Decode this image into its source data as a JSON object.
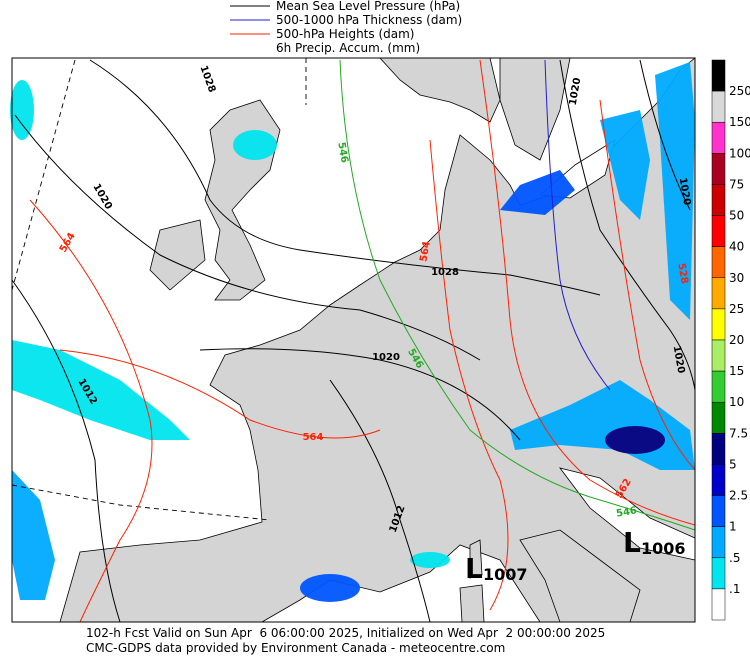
{
  "legend": [
    {
      "label": "Mean Sea Level Pressure (hPa)",
      "color": "#000000"
    },
    {
      "label": "500-1000 hPa Thickness (dam)",
      "color": "#2020cc"
    },
    {
      "label": "500-hPa Heights (dam)",
      "color": "#ff2200"
    },
    {
      "label": "6h Precip. Accum. (mm)",
      "color": null
    }
  ],
  "colorbar": {
    "labels": [
      "250",
      "150",
      "100",
      "75",
      "50",
      "40",
      "30",
      "25",
      "20",
      "15",
      "10",
      "7.5",
      "5",
      "2.5",
      "1",
      ".5",
      ".1"
    ],
    "colors": [
      "#000000",
      "#d8d8d8",
      "#ff33cc",
      "#aa0022",
      "#cc0000",
      "#ff0000",
      "#ff6600",
      "#ffaa00",
      "#ffff00",
      "#aaee66",
      "#33cc33",
      "#008800",
      "#000080",
      "#0000cc",
      "#0055ff",
      "#00aaff",
      "#00e5ee",
      "#ffffff"
    ]
  },
  "contour_labels": [
    {
      "text": "1028",
      "color": "#000000"
    },
    {
      "text": "1020",
      "color": "#000000"
    },
    {
      "text": "564",
      "color": "#ff2200"
    },
    {
      "text": "546",
      "color": "#22aa22"
    },
    {
      "text": "564",
      "color": "#ff2200"
    },
    {
      "text": "1028",
      "color": "#000000"
    },
    {
      "text": "1020",
      "color": "#000000"
    },
    {
      "text": "546",
      "color": "#22aa22"
    },
    {
      "text": "1012",
      "color": "#000000"
    },
    {
      "text": "564",
      "color": "#ff2200"
    },
    {
      "text": "1012",
      "color": "#000000"
    },
    {
      "text": "562",
      "color": "#ff2200"
    },
    {
      "text": "546",
      "color": "#22aa22"
    },
    {
      "text": "1020",
      "color": "#000000"
    },
    {
      "text": "1020",
      "color": "#000000"
    },
    {
      "text": "528",
      "color": "#ff2200"
    },
    {
      "text": "1020",
      "color": "#000000"
    }
  ],
  "lows": [
    {
      "symbol": "L",
      "pressure": "1007"
    },
    {
      "symbol": "L",
      "pressure": "1006"
    }
  ],
  "footer": [
    "102-h Fcst Valid on Sun Apr  6 06:00:00 2025, Initialized on Wed Apr  2 00:00:00 2025",
    "CMC-GDPS data provided by Environment Canada - meteocentre.com"
  ]
}
